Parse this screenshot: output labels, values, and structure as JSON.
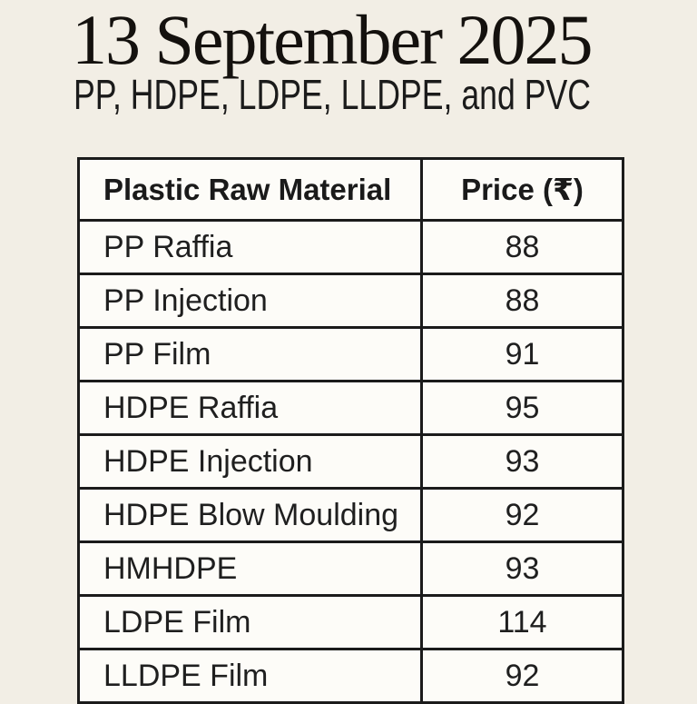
{
  "page": {
    "title": "13 September 2025",
    "subtitle": "PP, HDPE, LDPE, LLDPE, and PVC"
  },
  "table": {
    "headers": {
      "material": "Plastic Raw Material",
      "price": "Price (₹)"
    },
    "rows": [
      {
        "material": "PP Raffia",
        "price": "88"
      },
      {
        "material": "PP Injection",
        "price": "88"
      },
      {
        "material": "PP Film",
        "price": "91"
      },
      {
        "material": "HDPE Raffia",
        "price": "95"
      },
      {
        "material": "HDPE Injection",
        "price": "93"
      },
      {
        "material": "HDPE Blow Moulding",
        "price": "92"
      },
      {
        "material": "HMHDPE",
        "price": "93"
      },
      {
        "material": "LDPE Film",
        "price": "114"
      },
      {
        "material": "LLDPE Film",
        "price": "92"
      }
    ]
  },
  "colors": {
    "page_background": "#f2eee5",
    "cell_background": "#fdfcf8",
    "border": "#1b1b1b",
    "title_text": "#14110e",
    "body_text": "#1f1f1f"
  }
}
